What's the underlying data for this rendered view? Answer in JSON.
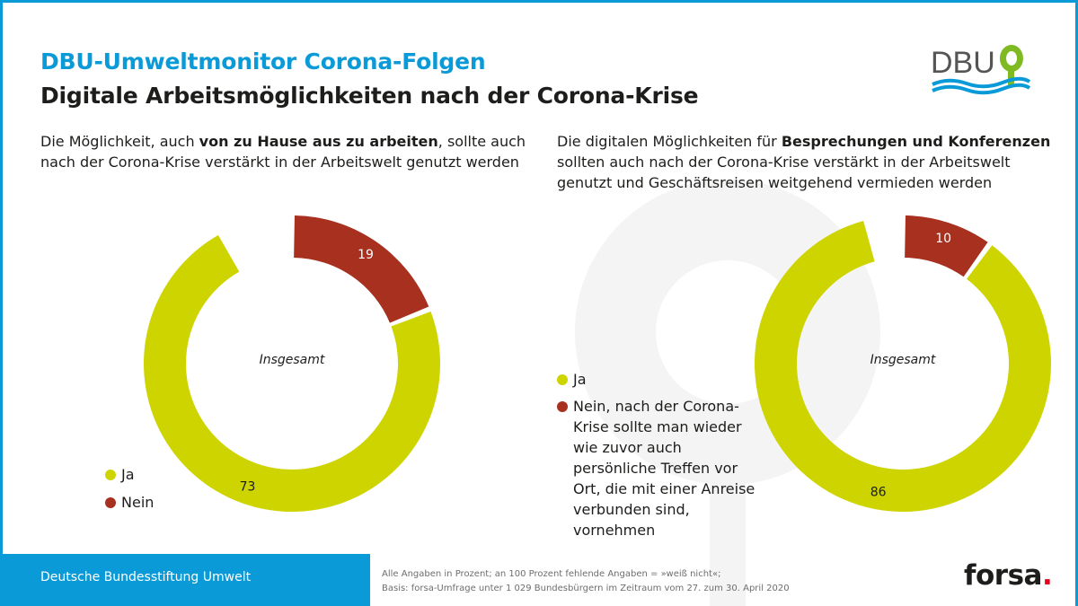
{
  "header": {
    "title": "DBU-Umweltmonitor Corona-Folgen",
    "subtitle": "Digitale Arbeitsmöglichkeiten nach der Corona-Krise",
    "logo_text": "DBU"
  },
  "questions": {
    "left": {
      "part1": "Die Möglichkeit, auch ",
      "bold": "von zu Hause aus zu arbeiten",
      "part2": ", sollte auch nach der Corona-Krise verstärkt in der Arbeitswelt genutzt werden"
    },
    "right": {
      "part1": "Die digitalen Möglichkeiten für ",
      "bold": "Besprechungen und Konferenzen",
      "part2": " sollten auch nach der Corona-Krise verstärkt in der Arbeitswelt genutzt und Geschäftsreisen weitgehend vermieden werden"
    }
  },
  "legend": {
    "left": {
      "ja": "Ja",
      "nein": "Nein"
    },
    "right": {
      "ja": "Ja",
      "nein": "Nein, nach der Corona-Krise sollte man wieder wie zuvor auch persönliche Treffen vor Ort, die mit einer Anreise verbunden sind, vornehmen"
    }
  },
  "colors": {
    "ja": "#cdd400",
    "nein": "#a7301f",
    "accent": "#0a9ad7"
  },
  "chart_data": [
    {
      "type": "pie",
      "center_label": "Insgesamt",
      "slices": [
        {
          "name": "Nein",
          "value": 19,
          "color": "#a7301f"
        },
        {
          "name": "Ja",
          "value": 73,
          "color": "#cdd400"
        }
      ],
      "total": 100
    },
    {
      "type": "pie",
      "center_label": "Insgesamt",
      "slices": [
        {
          "name": "Nein",
          "value": 10,
          "color": "#a7301f"
        },
        {
          "name": "Ja",
          "value": 86,
          "color": "#cdd400"
        }
      ],
      "total": 100
    }
  ],
  "footer": {
    "organization": "Deutsche Bundesstiftung Umwelt",
    "note1": "Alle Angaben in Prozent; an 100 Prozent fehlende Angaben = »weiß nicht«;",
    "note2": "Basis: forsa-Umfrage unter 1 029 Bundesbürgern im Zeitraum vom 27. zum 30. April 2020",
    "brand": "forsa",
    "brand_dot": "."
  }
}
